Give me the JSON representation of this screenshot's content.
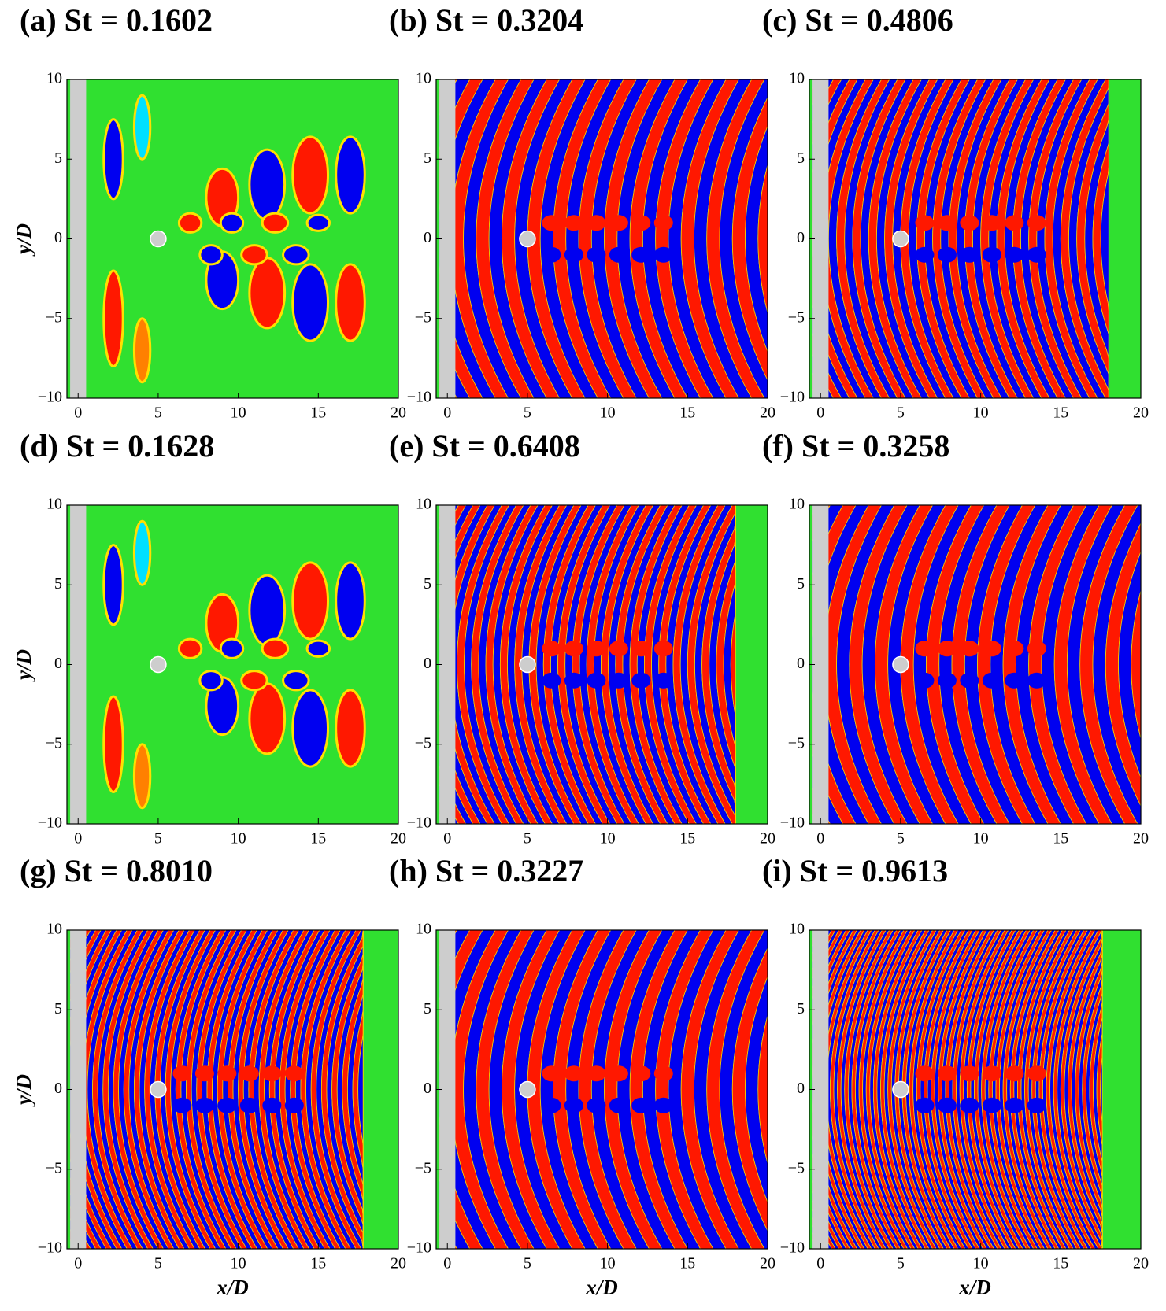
{
  "panels": [
    {
      "title": "(a) St = 0.1602"
    },
    {
      "title": "(b) St = 0.3204"
    },
    {
      "title": "(c) St = 0.4806"
    },
    {
      "title": "(d) St = 0.1628"
    },
    {
      "title": "(e) St = 0.6408"
    },
    {
      "title": "(f) St = 0.3258"
    },
    {
      "title": "(g) St = 0.8010"
    },
    {
      "title": "(h) St = 0.3227"
    },
    {
      "title": "(i) St = 0.9613"
    }
  ],
  "axes": {
    "x": {
      "label": "x/D",
      "lim": [
        -0.7,
        20
      ],
      "ticks": [
        0,
        5,
        10,
        15,
        20
      ]
    },
    "y": {
      "label": "y/D",
      "lim": [
        -10,
        10
      ],
      "ticks": [
        {
          "value": -10,
          "label": "−10"
        },
        {
          "value": -5,
          "label": "−5"
        },
        0,
        5,
        10
      ]
    }
  }
}
